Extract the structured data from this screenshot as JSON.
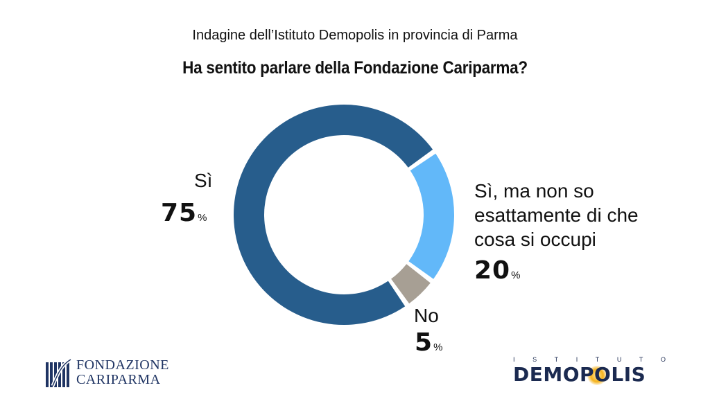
{
  "header": {
    "subtitle": "Indagine dell’Istituto Demopolis in provincia di Parma",
    "title": "Ha sentito parlare della Fondazione Cariparma?"
  },
  "chart_data": {
    "type": "pie",
    "donut": true,
    "title": "Ha sentito parlare della Fondazione Cariparma?",
    "subtitle": "Indagine dell’Istituto Demopolis in provincia di Parma",
    "categories": [
      "Sì",
      "Sì, ma non so esattamente di che cosa si occupi",
      "No"
    ],
    "values": [
      75,
      20,
      5
    ],
    "unit": "%",
    "colors": [
      "#275d8c",
      "#62b8f9",
      "#a79f94"
    ],
    "labels": [
      {
        "lines": [
          "Sì"
        ],
        "value": "75",
        "unit": "%"
      },
      {
        "lines": [
          "Sì, ma non so",
          "esattamente di che",
          "cosa si occupi"
        ],
        "value": "20",
        "unit": "%"
      },
      {
        "lines": [
          "No"
        ],
        "value": "5",
        "unit": "%"
      }
    ]
  },
  "logos": {
    "fondazione_line1": "FONDAZIONE",
    "fondazione_line2": "CARIPARMA",
    "demopolis_top": [
      "I",
      "S",
      "T",
      "I",
      "T",
      "U",
      "T",
      "O"
    ],
    "demopolis_main": "DEMOPOLIS"
  }
}
